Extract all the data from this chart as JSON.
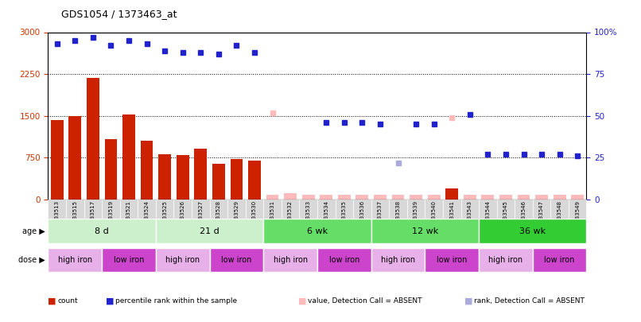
{
  "title": "GDS1054 / 1373463_at",
  "samples": [
    "GSM33513",
    "GSM33515",
    "GSM33517",
    "GSM33519",
    "GSM33521",
    "GSM33524",
    "GSM33525",
    "GSM33526",
    "GSM33527",
    "GSM33528",
    "GSM33529",
    "GSM33530",
    "GSM33531",
    "GSM33532",
    "GSM33533",
    "GSM33534",
    "GSM33535",
    "GSM33536",
    "GSM33537",
    "GSM33538",
    "GSM33539",
    "GSM33540",
    "GSM33541",
    "GSM33543",
    "GSM33544",
    "GSM33545",
    "GSM33546",
    "GSM33547",
    "GSM33548",
    "GSM33549"
  ],
  "count_values": [
    1420,
    1500,
    2180,
    1080,
    1530,
    1060,
    820,
    800,
    920,
    640,
    730,
    700,
    80,
    120,
    80,
    80,
    80,
    80,
    80,
    80,
    80,
    80,
    200,
    80,
    80,
    80,
    80,
    80,
    80,
    80
  ],
  "percentile_present": [
    93,
    95,
    97,
    92,
    95,
    93,
    89,
    88,
    88,
    87,
    92,
    88,
    null,
    null,
    null,
    46,
    46,
    46,
    45,
    null,
    45,
    45,
    null,
    51,
    null,
    null,
    null,
    null,
    null,
    null
  ],
  "value_absent": [
    null,
    null,
    null,
    null,
    null,
    null,
    null,
    null,
    null,
    null,
    null,
    null,
    52,
    null,
    null,
    null,
    null,
    null,
    null,
    null,
    null,
    null,
    49,
    null,
    null,
    null,
    null,
    null,
    null,
    null
  ],
  "rank_present": [
    null,
    null,
    null,
    null,
    null,
    null,
    null,
    null,
    null,
    null,
    null,
    null,
    null,
    null,
    null,
    null,
    null,
    null,
    null,
    null,
    null,
    null,
    null,
    null,
    27,
    27,
    27,
    27,
    27,
    26
  ],
  "rank_absent": [
    null,
    null,
    null,
    null,
    null,
    null,
    null,
    null,
    null,
    null,
    null,
    null,
    null,
    null,
    null,
    null,
    null,
    null,
    null,
    22,
    null,
    null,
    null,
    null,
    null,
    null,
    null,
    null,
    null,
    null
  ],
  "count_is_absent": [
    false,
    false,
    false,
    false,
    false,
    false,
    false,
    false,
    false,
    false,
    false,
    false,
    true,
    true,
    true,
    true,
    true,
    true,
    true,
    true,
    true,
    true,
    false,
    true,
    true,
    true,
    true,
    true,
    true,
    true
  ],
  "age_groups": [
    {
      "label": "8 d",
      "start": 0,
      "end": 5,
      "color": "#ccf0cc"
    },
    {
      "label": "21 d",
      "start": 6,
      "end": 11,
      "color": "#ccf0cc"
    },
    {
      "label": "6 wk",
      "start": 12,
      "end": 17,
      "color": "#66dd66"
    },
    {
      "label": "12 wk",
      "start": 18,
      "end": 23,
      "color": "#66dd66"
    },
    {
      "label": "36 wk",
      "start": 24,
      "end": 29,
      "color": "#33cc33"
    }
  ],
  "dose_groups": [
    {
      "label": "high iron",
      "start": 0,
      "end": 2,
      "color": "#e8b0e8"
    },
    {
      "label": "low iron",
      "start": 3,
      "end": 5,
      "color": "#cc44cc"
    },
    {
      "label": "high iron",
      "start": 6,
      "end": 8,
      "color": "#e8b0e8"
    },
    {
      "label": "low iron",
      "start": 9,
      "end": 11,
      "color": "#cc44cc"
    },
    {
      "label": "high iron",
      "start": 12,
      "end": 14,
      "color": "#e8b0e8"
    },
    {
      "label": "low iron",
      "start": 15,
      "end": 17,
      "color": "#cc44cc"
    },
    {
      "label": "high iron",
      "start": 18,
      "end": 20,
      "color": "#e8b0e8"
    },
    {
      "label": "low iron",
      "start": 21,
      "end": 23,
      "color": "#cc44cc"
    },
    {
      "label": "high iron",
      "start": 24,
      "end": 26,
      "color": "#e8b0e8"
    },
    {
      "label": "low iron",
      "start": 27,
      "end": 29,
      "color": "#cc44cc"
    }
  ],
  "ylim_left": [
    0,
    3000
  ],
  "ylim_right": [
    0,
    100
  ],
  "yticks_left": [
    0,
    750,
    1500,
    2250,
    3000
  ],
  "yticks_right": [
    0,
    25,
    50,
    75,
    100
  ],
  "bar_color_present": "#cc2200",
  "bar_color_absent": "#ffbbbb",
  "dot_color_present": "#2222cc",
  "dot_color_absent": "#aaaadd",
  "value_absent_color": "#ffbbbb",
  "rank_absent_color": "#aaaadd",
  "legend_items": [
    {
      "label": "count",
      "color": "#cc2200",
      "facecolor": "#cc2200"
    },
    {
      "label": "percentile rank within the sample",
      "color": "#2222cc",
      "facecolor": "#2222cc"
    },
    {
      "label": "value, Detection Call = ABSENT",
      "color": "#ffbbbb",
      "facecolor": "#ffbbbb"
    },
    {
      "label": "rank, Detection Call = ABSENT",
      "color": "#aaaadd",
      "facecolor": "#aaaadd"
    }
  ]
}
